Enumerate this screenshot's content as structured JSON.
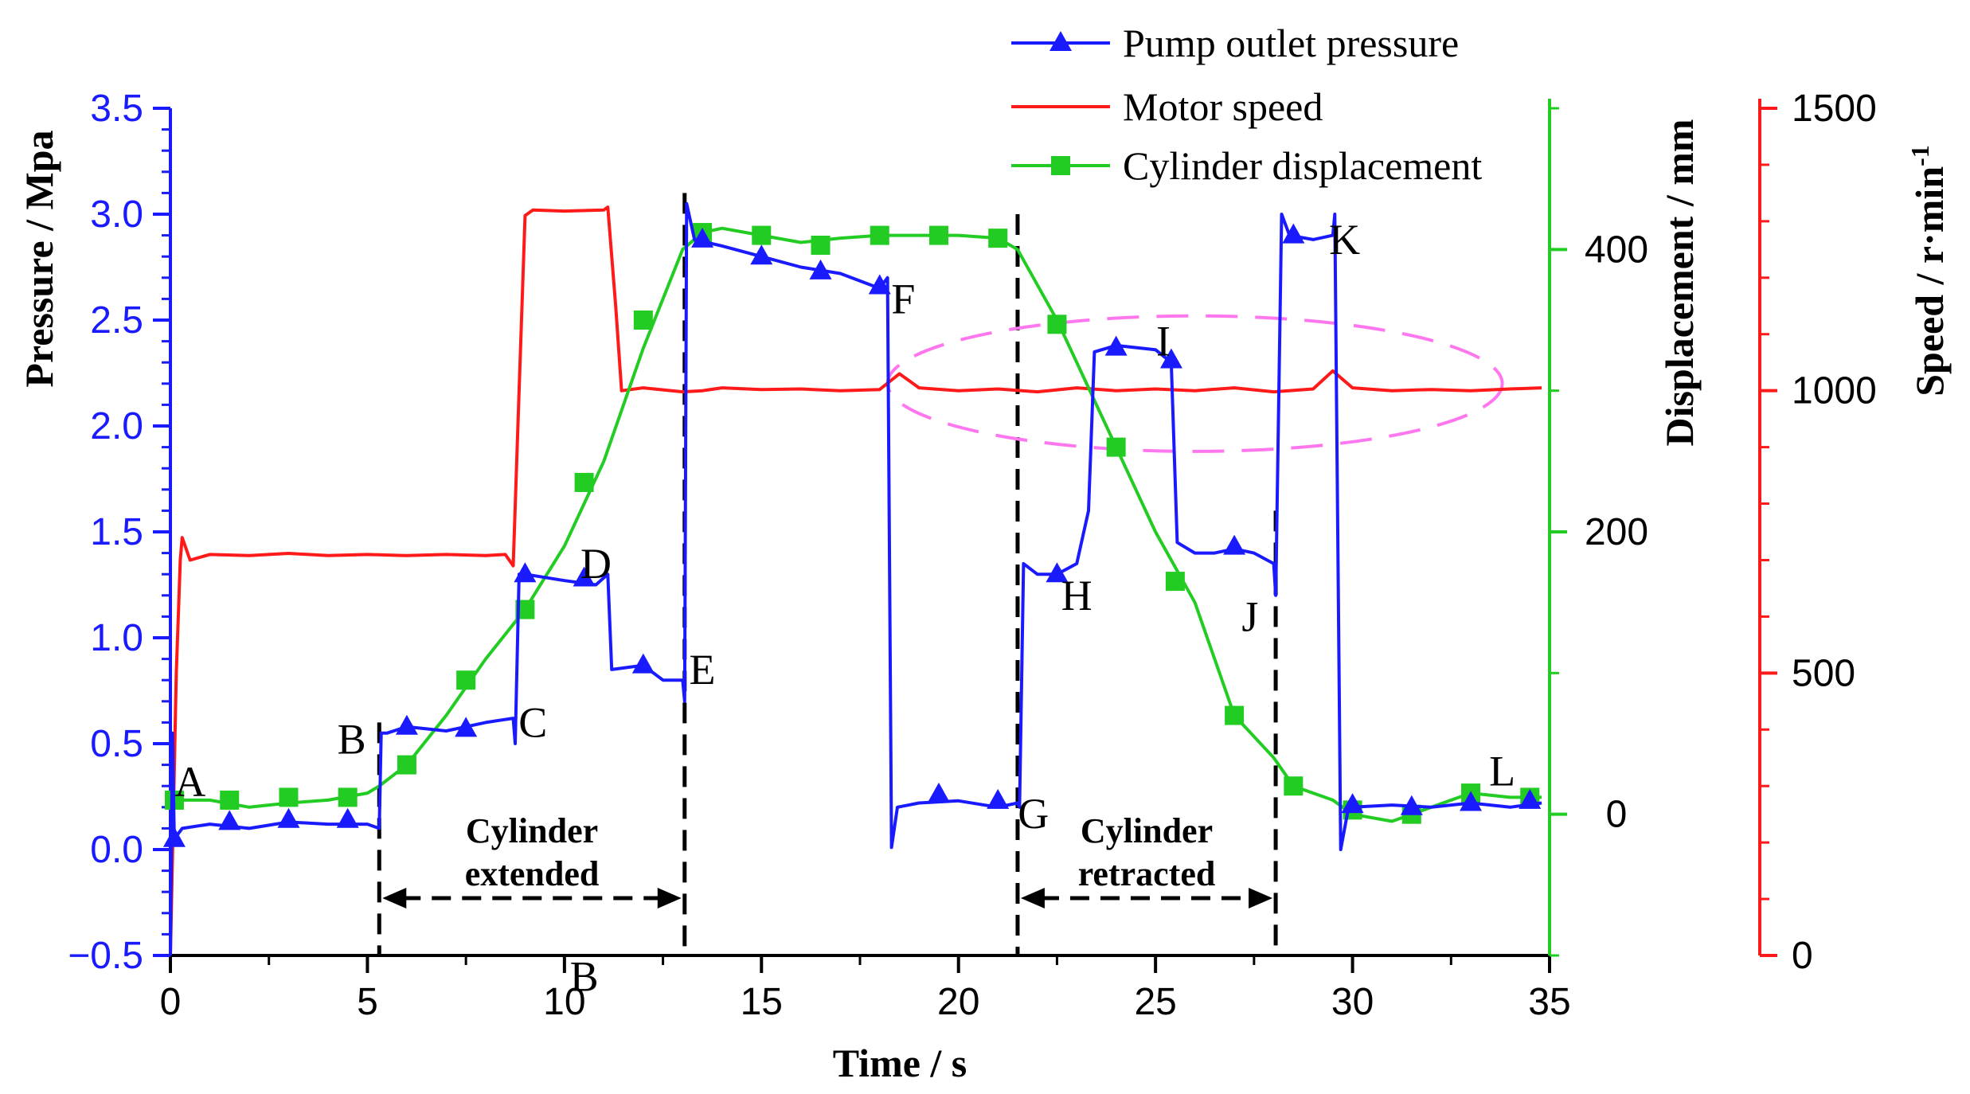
{
  "chart_data": {
    "type": "line",
    "x_axis": {
      "label": "Time / s",
      "range": [
        0,
        35
      ],
      "ticks": [
        0,
        5,
        10,
        15,
        20,
        25,
        30,
        35
      ],
      "tick_labels": [
        "0",
        "5",
        "10",
        "15",
        "20",
        "25",
        "30",
        "35"
      ]
    },
    "y_axes": {
      "pressure": {
        "label": "Pressure / Mpa",
        "range": [
          -0.5,
          3.5
        ],
        "ticks": [
          -0.5,
          0,
          0.5,
          1,
          1.5,
          2,
          2.5,
          3,
          3.5
        ],
        "tick_labels": [
          "−0.5",
          "0.0",
          "0.5",
          "1.0",
          "1.5",
          "2.0",
          "2.5",
          "3.0",
          "3.5"
        ],
        "color": "#1a1aff"
      },
      "displacement": {
        "label": "Displacement / mm",
        "range": [
          -100,
          500
        ],
        "ticks": [
          0,
          200,
          400
        ],
        "tick_labels": [
          "0",
          "200",
          "400"
        ],
        "color": "#22cc22"
      },
      "speed": {
        "label_main": "Speed / r·min",
        "label_sup": "-1",
        "range": [
          0,
          1500
        ],
        "ticks": [
          0,
          500,
          1000,
          1500
        ],
        "tick_labels": [
          "0",
          "500",
          "1000",
          "1500"
        ],
        "color": "#ff1a1a"
      }
    },
    "series": [
      {
        "name": "Pump outlet pressure",
        "axis": "pressure",
        "color": "#1a1aff",
        "marker": "triangle",
        "points": [
          [
            0,
            -0.5
          ],
          [
            0.05,
            0.55
          ],
          [
            0.1,
            0.05
          ],
          [
            0.3,
            0.1
          ],
          [
            1,
            0.12
          ],
          [
            2,
            0.1
          ],
          [
            3,
            0.13
          ],
          [
            4,
            0.12
          ],
          [
            5,
            0.12
          ],
          [
            5.3,
            0.1
          ],
          [
            5.35,
            0.55
          ],
          [
            5.5,
            0.55
          ],
          [
            6,
            0.58
          ],
          [
            7,
            0.56
          ],
          [
            8,
            0.6
          ],
          [
            8.7,
            0.62
          ],
          [
            8.75,
            0.5
          ],
          [
            8.85,
            1.3
          ],
          [
            9,
            1.3
          ],
          [
            10,
            1.27
          ],
          [
            10.8,
            1.25
          ],
          [
            11.1,
            1.3
          ],
          [
            11.2,
            0.85
          ],
          [
            12,
            0.87
          ],
          [
            12.5,
            0.8
          ],
          [
            13,
            0.8
          ],
          [
            13.05,
            0.7
          ],
          [
            13.1,
            3.05
          ],
          [
            13.3,
            2.88
          ],
          [
            14,
            2.85
          ],
          [
            15,
            2.8
          ],
          [
            16,
            2.75
          ],
          [
            17,
            2.72
          ],
          [
            18,
            2.65
          ],
          [
            18.2,
            2.7
          ],
          [
            18.3,
            0.01
          ],
          [
            18.45,
            0.2
          ],
          [
            19,
            0.22
          ],
          [
            20,
            0.23
          ],
          [
            21,
            0.2
          ],
          [
            21.5,
            0.22
          ],
          [
            21.55,
            0.2
          ],
          [
            21.65,
            1.35
          ],
          [
            22,
            1.3
          ],
          [
            22.5,
            1.3
          ],
          [
            23,
            1.35
          ],
          [
            23.3,
            1.6
          ],
          [
            23.45,
            2.35
          ],
          [
            24,
            2.38
          ],
          [
            25,
            2.36
          ],
          [
            25.4,
            2.3
          ],
          [
            25.55,
            1.45
          ],
          [
            26,
            1.4
          ],
          [
            26.5,
            1.4
          ],
          [
            27,
            1.42
          ],
          [
            27.5,
            1.4
          ],
          [
            28,
            1.35
          ],
          [
            28.05,
            1.2
          ],
          [
            28.2,
            3.0
          ],
          [
            28.4,
            2.9
          ],
          [
            29,
            2.88
          ],
          [
            29.5,
            2.9
          ],
          [
            29.55,
            3.0
          ],
          [
            29.7,
            0.0
          ],
          [
            29.9,
            0.2
          ],
          [
            30,
            0.2
          ],
          [
            31,
            0.21
          ],
          [
            32,
            0.2
          ],
          [
            33,
            0.22
          ],
          [
            34,
            0.2
          ],
          [
            34.8,
            0.22
          ]
        ],
        "marker_points": [
          [
            0.1,
            0.05
          ],
          [
            1.5,
            0.13
          ],
          [
            3,
            0.14
          ],
          [
            4.5,
            0.14
          ],
          [
            6,
            0.58
          ],
          [
            7.5,
            0.57
          ],
          [
            9,
            1.3
          ],
          [
            10.5,
            1.28
          ],
          [
            12,
            0.87
          ],
          [
            13.5,
            2.88
          ],
          [
            15,
            2.8
          ],
          [
            16.5,
            2.73
          ],
          [
            18,
            2.66
          ],
          [
            19.5,
            0.26
          ],
          [
            21,
            0.23
          ],
          [
            22.5,
            1.3
          ],
          [
            24,
            2.37
          ],
          [
            25.4,
            2.31
          ],
          [
            27,
            1.43
          ],
          [
            28.5,
            2.9
          ],
          [
            30,
            0.21
          ],
          [
            31.5,
            0.2
          ],
          [
            33,
            0.22
          ],
          [
            34.5,
            0.23
          ]
        ]
      },
      {
        "name": "Motor speed",
        "axis": "speed",
        "color": "#ff1a1a",
        "marker": "none",
        "points": [
          [
            0,
            0
          ],
          [
            0.15,
            500
          ],
          [
            0.25,
            700
          ],
          [
            0.3,
            740
          ],
          [
            0.5,
            700
          ],
          [
            1,
            710
          ],
          [
            2,
            708
          ],
          [
            3,
            712
          ],
          [
            4,
            708
          ],
          [
            5,
            710
          ],
          [
            6,
            708
          ],
          [
            7,
            710
          ],
          [
            8,
            708
          ],
          [
            8.5,
            710
          ],
          [
            8.7,
            690
          ],
          [
            8.85,
            1000
          ],
          [
            9,
            1310
          ],
          [
            9.2,
            1320
          ],
          [
            10,
            1318
          ],
          [
            11,
            1320
          ],
          [
            11.1,
            1325
          ],
          [
            11.3,
            1150
          ],
          [
            11.45,
            1000
          ],
          [
            12,
            1005
          ],
          [
            13,
            998
          ],
          [
            13.5,
            1000
          ],
          [
            14,
            1005
          ],
          [
            15,
            1002
          ],
          [
            16,
            1003
          ],
          [
            17,
            1000
          ],
          [
            18,
            1002
          ],
          [
            18.5,
            1030
          ],
          [
            19,
            1005
          ],
          [
            20,
            1000
          ],
          [
            21,
            1003
          ],
          [
            22,
            998
          ],
          [
            23,
            1005
          ],
          [
            24,
            1000
          ],
          [
            25,
            1003
          ],
          [
            26,
            1000
          ],
          [
            27,
            1005
          ],
          [
            28,
            998
          ],
          [
            29,
            1003
          ],
          [
            29.5,
            1035
          ],
          [
            30,
            1005
          ],
          [
            31,
            1000
          ],
          [
            32,
            1002
          ],
          [
            33,
            1000
          ],
          [
            34,
            1003
          ],
          [
            34.8,
            1005
          ]
        ]
      },
      {
        "name": "Cylinder displacement",
        "axis": "displacement",
        "color": "#22cc22",
        "marker": "square",
        "points": [
          [
            0,
            10
          ],
          [
            1,
            10
          ],
          [
            2,
            5
          ],
          [
            3,
            8
          ],
          [
            4,
            10
          ],
          [
            5,
            15
          ],
          [
            5.3,
            20
          ],
          [
            6,
            35
          ],
          [
            7,
            70
          ],
          [
            8,
            110
          ],
          [
            9,
            145
          ],
          [
            10,
            190
          ],
          [
            11,
            250
          ],
          [
            12,
            330
          ],
          [
            13,
            400
          ],
          [
            13.5,
            412
          ],
          [
            14,
            415
          ],
          [
            15,
            410
          ],
          [
            16,
            405
          ],
          [
            17,
            408
          ],
          [
            18,
            410
          ],
          [
            19,
            410
          ],
          [
            20,
            410
          ],
          [
            21,
            408
          ],
          [
            21.5,
            400
          ],
          [
            22,
            375
          ],
          [
            22.5,
            350
          ],
          [
            23,
            320
          ],
          [
            24,
            260
          ],
          [
            25,
            200
          ],
          [
            26,
            150
          ],
          [
            27,
            70
          ],
          [
            28,
            40
          ],
          [
            28.5,
            20
          ],
          [
            29,
            15
          ],
          [
            29.5,
            10
          ],
          [
            30,
            0
          ],
          [
            31,
            -5
          ],
          [
            31.5,
            0
          ],
          [
            32,
            5
          ],
          [
            33,
            15
          ],
          [
            34,
            12
          ],
          [
            34.8,
            12
          ]
        ],
        "marker_points": [
          [
            0.1,
            10
          ],
          [
            1.5,
            10
          ],
          [
            3,
            12
          ],
          [
            4.5,
            12
          ],
          [
            6,
            35
          ],
          [
            7.5,
            95
          ],
          [
            9,
            145
          ],
          [
            10.5,
            235
          ],
          [
            12,
            350
          ],
          [
            13.5,
            412
          ],
          [
            15,
            410
          ],
          [
            16.5,
            403
          ],
          [
            18,
            410
          ],
          [
            19.5,
            410
          ],
          [
            21,
            408
          ],
          [
            22.5,
            347
          ],
          [
            24,
            260
          ],
          [
            25.5,
            165
          ],
          [
            27,
            70
          ],
          [
            28.5,
            20
          ],
          [
            30,
            3
          ],
          [
            31.5,
            0
          ],
          [
            33,
            15
          ],
          [
            34.5,
            12
          ]
        ]
      }
    ],
    "legend": {
      "position": "top",
      "entries": [
        "Pump outlet pressure",
        "Motor speed",
        "Cylinder displacement"
      ]
    },
    "annotations": {
      "point_labels": [
        {
          "text": "A",
          "x": 0.5,
          "y": 0.32
        },
        {
          "text": "B",
          "x": 4.6,
          "y": 0.52
        },
        {
          "text": "C",
          "x": 9.2,
          "y": 0.6
        },
        {
          "text": "D",
          "x": 10.8,
          "y": 1.35
        },
        {
          "text": "E",
          "x": 13.5,
          "y": 0.85
        },
        {
          "text": "F",
          "x": 18.6,
          "y": 2.6
        },
        {
          "text": "G",
          "x": 21.9,
          "y": 0.17
        },
        {
          "text": "H",
          "x": 23.0,
          "y": 1.2
        },
        {
          "text": "I",
          "x": 25.2,
          "y": 2.4
        },
        {
          "text": "J",
          "x": 27.4,
          "y": 1.1
        },
        {
          "text": "K",
          "x": 29.8,
          "y": 2.88
        },
        {
          "text": "L",
          "x": 33.8,
          "y": 0.37
        },
        {
          "text": "B",
          "x": 10.5,
          "y": -0.6
        }
      ],
      "dashed_lines_x": [
        5.3,
        13.05,
        21.5,
        28.05
      ],
      "phases": [
        {
          "line1": "Cylinder",
          "line2": "extended",
          "from": 5.3,
          "to": 13.05
        },
        {
          "line1": "Cylinder",
          "line2": "retracted",
          "from": 21.5,
          "to": 28.05
        }
      ],
      "highlight_ellipse": {
        "center_x": 26,
        "center_y": 2.2,
        "radius_x": 7.8,
        "radius_y": 0.32,
        "color": "#ff77ee"
      }
    }
  }
}
